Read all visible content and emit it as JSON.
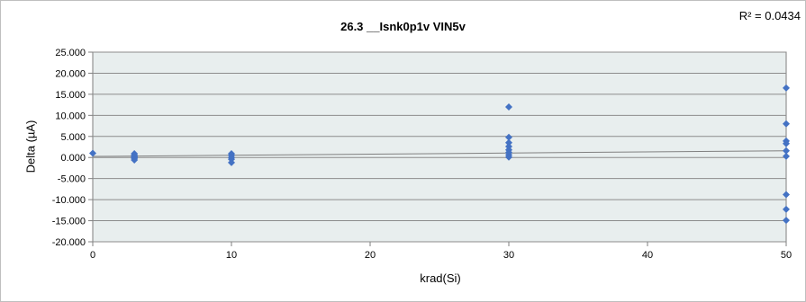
{
  "chart_data": {
    "type": "scatter",
    "title": "26.3 __Isnk0p1v VIN5v",
    "xlabel": "krad(Si)",
    "ylabel": "Delta (µA)",
    "r_squared_label": "R² = 0.0434",
    "xlim": [
      0,
      50
    ],
    "ylim": [
      -20,
      25
    ],
    "x_ticks": [
      0,
      10,
      20,
      30,
      40,
      50
    ],
    "x_tick_labels": [
      "0",
      "10",
      "20",
      "30",
      "40",
      "50"
    ],
    "y_ticks": [
      25,
      20,
      15,
      10,
      5,
      0,
      -5,
      -10,
      -15,
      -20
    ],
    "y_tick_labels": [
      "25.000",
      "20.000",
      "15.000",
      "10.000",
      "5.000",
      "0.000",
      "-5.000",
      "-10.000",
      "-15.000",
      "-20.000"
    ],
    "grid": true,
    "marker_color": "#4472c4",
    "plot_background": "#e8eeee",
    "trendline": {
      "type": "linear",
      "x": [
        0,
        50
      ],
      "y": [
        0.25,
        1.6
      ],
      "color": "#808080"
    },
    "series": [
      {
        "x": [
          0,
          3,
          3,
          3,
          3,
          3,
          3,
          10,
          10,
          10,
          10,
          10,
          30,
          30,
          30,
          30,
          30,
          30,
          30,
          30,
          50,
          50,
          50,
          50,
          50,
          50,
          50,
          50,
          50
        ],
        "y": [
          1.0,
          0.9,
          0.5,
          0.2,
          0.0,
          -0.2,
          -0.6,
          0.9,
          0.5,
          0.0,
          -0.4,
          -1.2,
          12.0,
          4.8,
          3.5,
          2.6,
          1.8,
          1.2,
          0.6,
          0.1,
          16.5,
          8.0,
          3.9,
          3.3,
          1.6,
          0.3,
          -8.8,
          -12.3,
          -14.9
        ]
      }
    ]
  }
}
